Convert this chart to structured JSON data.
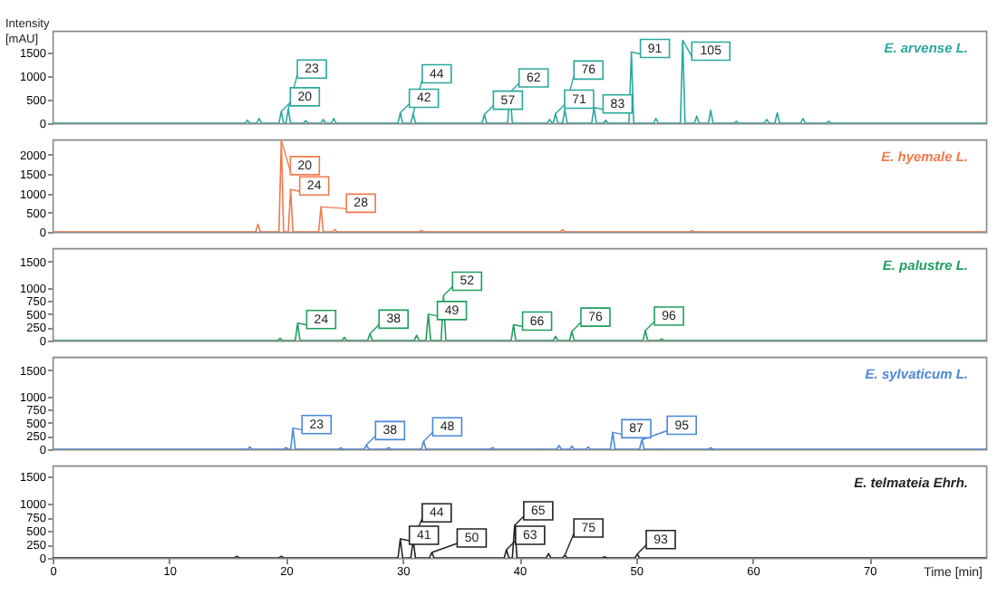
{
  "chart_data": [
    {
      "type": "line",
      "title": "E. arvense L.",
      "ylabel": "Intensity [mAU]",
      "xlim": [
        0,
        80
      ],
      "ylim": [
        0,
        1950
      ],
      "yticks": [
        0,
        500,
        1000,
        1500
      ],
      "tick_labels": "y",
      "x": [
        0,
        16.5,
        16.7,
        16.9,
        17.5,
        17.7,
        17.9,
        19.4,
        19.6,
        19.8,
        20.0,
        20.2,
        20.4,
        21.5,
        21.7,
        21.9,
        23.0,
        23.2,
        23.4,
        23.9,
        24.1,
        24.3,
        29.6,
        29.8,
        30.0,
        30.7,
        30.9,
        31.1,
        36.8,
        37.0,
        37.2,
        39.0,
        39.2,
        39.4,
        42.4,
        42.6,
        42.8,
        42.9,
        43.1,
        43.3,
        43.7,
        43.9,
        44.1,
        46.2,
        46.4,
        46.6,
        47.2,
        47.4,
        47.6,
        49.4,
        49.6,
        49.8,
        51.5,
        51.7,
        51.9,
        53.8,
        54.0,
        54.2,
        55.0,
        55.2,
        55.4,
        56.2,
        56.4,
        56.6,
        58.4,
        58.6,
        58.8,
        61.0,
        61.2,
        61.4,
        61.9,
        62.1,
        62.3,
        64.1,
        64.3,
        64.5,
        66.3,
        66.5,
        66.7,
        80
      ],
      "series": [
        {
          "color": "#2aa89e",
          "values": [
            0,
            0,
            60,
            0,
            0,
            100,
            0,
            0,
            250,
            0,
            0,
            300,
            0,
            0,
            50,
            0,
            0,
            80,
            0,
            0,
            100,
            0,
            0,
            220,
            0,
            0,
            200,
            0,
            0,
            180,
            0,
            0,
            650,
            0,
            0,
            80,
            0,
            0,
            200,
            0,
            0,
            280,
            0,
            0,
            330,
            0,
            0,
            60,
            0,
            0,
            1500,
            0,
            0,
            100,
            0,
            0,
            1750,
            0,
            0,
            150,
            0,
            0,
            270,
            0,
            0,
            40,
            0,
            0,
            80,
            0,
            0,
            220,
            0,
            0,
            100,
            0,
            0,
            40,
            0,
            0
          ]
        }
      ],
      "annotations": [
        {
          "text": "20",
          "x": 19.6,
          "y": 250
        },
        {
          "text": "23",
          "x": 20.2,
          "y": 300
        },
        {
          "text": "42",
          "x": 29.8,
          "y": 220
        },
        {
          "text": "44",
          "x": 30.9,
          "y": 200
        },
        {
          "text": "57",
          "x": 37.0,
          "y": 180
        },
        {
          "text": "62",
          "x": 39.2,
          "y": 650
        },
        {
          "text": "71",
          "x": 43.1,
          "y": 200
        },
        {
          "text": "76",
          "x": 43.9,
          "y": 280
        },
        {
          "text": "83",
          "x": 46.4,
          "y": 330
        },
        {
          "text": "91",
          "x": 49.6,
          "y": 1500
        },
        {
          "text": "105",
          "x": 54.0,
          "y": 1750
        }
      ]
    },
    {
      "type": "line",
      "title": "E. hyemale L.",
      "xlim": [
        0,
        80
      ],
      "ylim": [
        0,
        2400
      ],
      "yticks": [
        0,
        500,
        1000,
        1500,
        2000
      ],
      "tick_labels": "y",
      "x": [
        0,
        17.4,
        17.6,
        17.8,
        19.4,
        19.6,
        19.8,
        20.2,
        20.4,
        20.6,
        22.8,
        23.0,
        23.2,
        24.0,
        24.2,
        24.4,
        31.4,
        31.6,
        31.8,
        43.5,
        43.7,
        43.9,
        54.6,
        54.8,
        55.0,
        80
      ],
      "series": [
        {
          "color": "#f07a4c",
          "values": [
            0,
            0,
            200,
            0,
            0,
            2380,
            0,
            0,
            1100,
            0,
            0,
            650,
            0,
            0,
            60,
            0,
            0,
            40,
            0,
            0,
            60,
            0,
            0,
            30,
            0,
            0
          ]
        }
      ],
      "annotations": [
        {
          "text": "20",
          "x": 19.6,
          "y": 2380
        },
        {
          "text": "24",
          "x": 20.4,
          "y": 1100
        },
        {
          "text": "28",
          "x": 23.0,
          "y": 650
        }
      ]
    },
    {
      "type": "line",
      "title": "E. palustre L.",
      "xlim": [
        0,
        80
      ],
      "ylim": [
        0,
        1750
      ],
      "yticks": [
        0,
        250,
        500,
        750,
        1000,
        1500
      ],
      "tick_labels": "y",
      "x": [
        0,
        19.3,
        19.5,
        19.7,
        20.8,
        21.0,
        21.2,
        24.8,
        25.0,
        25.2,
        27.0,
        27.2,
        27.4,
        31.0,
        31.2,
        31.4,
        32.0,
        32.2,
        32.4,
        33.3,
        33.5,
        33.7,
        39.3,
        39.5,
        39.7,
        42.9,
        43.1,
        43.3,
        44.3,
        44.5,
        44.7,
        50.6,
        50.8,
        51.0,
        52.0,
        52.2,
        52.4,
        80
      ],
      "series": [
        {
          "color": "#1f9e5e",
          "values": [
            0,
            0,
            40,
            0,
            0,
            330,
            0,
            0,
            60,
            0,
            0,
            130,
            0,
            0,
            100,
            0,
            0,
            500,
            0,
            0,
            850,
            0,
            0,
            300,
            0,
            0,
            80,
            0,
            0,
            170,
            0,
            0,
            190,
            0,
            0,
            30,
            0,
            0
          ]
        }
      ],
      "annotations": [
        {
          "text": "24",
          "x": 21.0,
          "y": 330
        },
        {
          "text": "38",
          "x": 27.2,
          "y": 130
        },
        {
          "text": "49",
          "x": 32.2,
          "y": 500
        },
        {
          "text": "52",
          "x": 33.5,
          "y": 850
        },
        {
          "text": "66",
          "x": 39.5,
          "y": 300
        },
        {
          "text": "76",
          "x": 44.5,
          "y": 170
        },
        {
          "text": "96",
          "x": 50.8,
          "y": 190
        }
      ]
    },
    {
      "type": "line",
      "title": "E. sylvaticum L.",
      "xlim": [
        0,
        80
      ],
      "ylim": [
        0,
        1750
      ],
      "yticks": [
        0,
        250,
        500,
        750,
        1000,
        1500
      ],
      "tick_labels": "y",
      "x": [
        0,
        16.7,
        16.9,
        17.1,
        19.8,
        20.0,
        20.2,
        20.4,
        20.6,
        20.8,
        24.5,
        24.7,
        24.9,
        26.7,
        26.9,
        27.1,
        28.6,
        28.8,
        29.0,
        31.6,
        31.8,
        32.0,
        37.5,
        37.7,
        37.9,
        43.2,
        43.4,
        43.6,
        44.3,
        44.5,
        44.7,
        45.7,
        45.9,
        46.1,
        47.8,
        48.0,
        48.2,
        50.3,
        50.5,
        50.7,
        56.2,
        56.4,
        56.6,
        80
      ],
      "series": [
        {
          "color": "#4a88d8",
          "values": [
            0,
            0,
            40,
            0,
            0,
            30,
            0,
            0,
            400,
            0,
            0,
            25,
            0,
            0,
            80,
            0,
            0,
            30,
            0,
            0,
            150,
            0,
            0,
            30,
            0,
            0,
            70,
            0,
            0,
            60,
            0,
            0,
            40,
            0,
            0,
            320,
            0,
            0,
            180,
            0,
            0,
            25,
            0,
            0
          ]
        }
      ],
      "annotations": [
        {
          "text": "23",
          "x": 20.6,
          "y": 400
        },
        {
          "text": "38",
          "x": 26.9,
          "y": 80
        },
        {
          "text": "48",
          "x": 31.8,
          "y": 150
        },
        {
          "text": "87",
          "x": 48.0,
          "y": 320
        },
        {
          "text": "95",
          "x": 50.5,
          "y": 180
        }
      ]
    },
    {
      "type": "line",
      "title": "E. telmateia Ehrh.",
      "xlabel": "Time [min]",
      "xlim": [
        0,
        80
      ],
      "ylim": [
        0,
        1700
      ],
      "xticks": [
        0,
        10,
        20,
        30,
        40,
        50,
        60,
        70
      ],
      "yticks": [
        0,
        250,
        500,
        750,
        1000,
        1500
      ],
      "x": [
        0,
        15.6,
        15.8,
        16.0,
        19.4,
        19.6,
        19.8,
        29.6,
        29.8,
        30.0,
        30.7,
        30.9,
        31.1,
        32.3,
        32.5,
        32.7,
        38.7,
        38.9,
        39.1,
        39.4,
        39.6,
        39.8,
        42.3,
        42.5,
        42.7,
        43.7,
        43.9,
        44.1,
        47.1,
        47.3,
        47.5,
        49.9,
        50.1,
        50.3,
        80
      ],
      "series": [
        {
          "color": "#222222",
          "values": [
            0,
            0,
            30,
            0,
            0,
            30,
            0,
            0,
            350,
            0,
            0,
            330,
            0,
            0,
            100,
            0,
            0,
            150,
            0,
            0,
            600,
            0,
            0,
            80,
            0,
            0,
            50,
            0,
            0,
            20,
            0,
            0,
            70,
            0,
            0
          ]
        }
      ],
      "annotations": [
        {
          "text": "41",
          "x": 29.8,
          "y": 350
        },
        {
          "text": "44",
          "x": 30.9,
          "y": 330
        },
        {
          "text": "50",
          "x": 32.5,
          "y": 100
        },
        {
          "text": "63",
          "x": 38.9,
          "y": 150
        },
        {
          "text": "65",
          "x": 39.6,
          "y": 600
        },
        {
          "text": "75",
          "x": 43.9,
          "y": 50
        },
        {
          "text": "93",
          "x": 50.1,
          "y": 70
        }
      ]
    }
  ]
}
